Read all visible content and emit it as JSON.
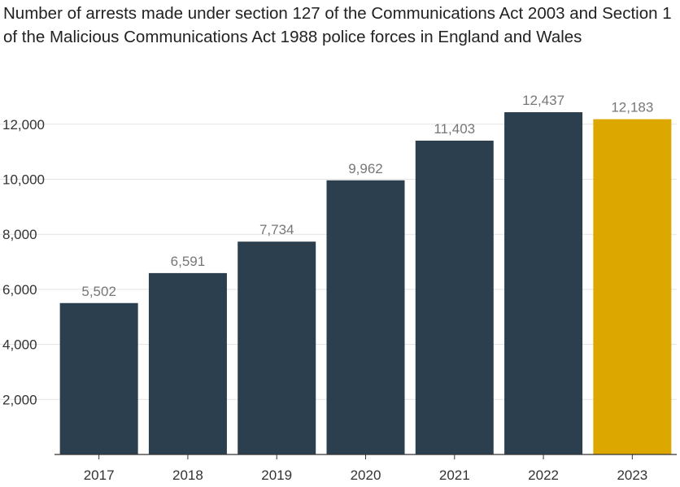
{
  "chart_data": {
    "type": "bar",
    "title": "Number of arrests made under section 127 of the Communications Act 2003 and Section 1 of the Malicious Communications Act 1988 police forces in England and Wales",
    "xlabel": "",
    "ylabel": "",
    "categories": [
      "2017",
      "2018",
      "2019",
      "2020",
      "2021",
      "2022",
      "2023"
    ],
    "values": [
      5502,
      6591,
      7734,
      9962,
      11403,
      12437,
      12183
    ],
    "value_labels": [
      "5,502",
      "6,591",
      "7,734",
      "9,962",
      "11,403",
      "12,437",
      "12,183"
    ],
    "yticks": [
      2000,
      4000,
      6000,
      8000,
      10000,
      12000
    ],
    "ytick_labels": [
      "2,000",
      "4,000",
      "6,000",
      "8,000",
      "10,000",
      "12,000"
    ],
    "ylim": [
      0,
      12437
    ],
    "grid": true,
    "legend": "none",
    "colors": {
      "bar": "#2b3f4f",
      "highlight_bar": "#dca800",
      "highlight_category": "2023",
      "grid": "#e3e3e3",
      "axis": "#333333"
    }
  }
}
